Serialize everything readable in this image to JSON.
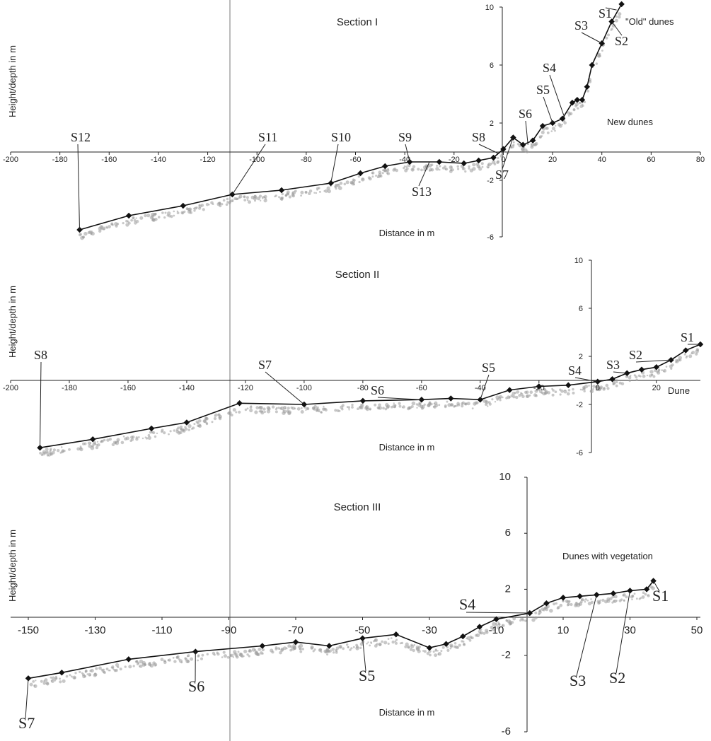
{
  "chart_data": [
    {
      "type": "line",
      "title": "Section I",
      "xlabel": "Distance in m",
      "ylabel": "Height/depth in m",
      "xlim": [
        -200,
        80
      ],
      "ylim": [
        -6,
        10
      ],
      "x_ticks": [
        "-200",
        "-180",
        "-160",
        "-140",
        "-120",
        "-100",
        "-80",
        "-60",
        "-40",
        "-20",
        "0",
        "20",
        "40",
        "60",
        "80"
      ],
      "y_ticks": [
        "-6",
        "-2",
        "2",
        "6",
        "10"
      ],
      "annotations": [
        "\"Old\" dunes",
        "New dunes"
      ],
      "series": [
        {
          "x": [
            -172,
            -152,
            -130,
            -110,
            -90,
            -70,
            -58,
            -48,
            -38,
            -26,
            -16,
            -10,
            -4,
            0,
            4,
            8,
            12,
            16,
            20,
            24,
            28,
            30,
            32,
            34,
            36,
            40,
            44,
            48
          ],
          "y": [
            -5.5,
            -4.5,
            -3.8,
            -3.0,
            -2.7,
            -2.2,
            -1.5,
            -1.0,
            -0.7,
            -0.7,
            -0.8,
            -0.6,
            -0.4,
            0.2,
            1.0,
            0.5,
            0.8,
            1.8,
            2.0,
            2.3,
            3.4,
            3.6,
            3.6,
            4.5,
            6.0,
            7.5,
            9.0,
            10.2
          ]
        }
      ],
      "stations": [
        {
          "label": "S12",
          "x": -172,
          "y": -5.5
        },
        {
          "label": "S11",
          "x": -110,
          "y": -3.0
        },
        {
          "label": "S10",
          "x": -70,
          "y": -2.2
        },
        {
          "label": "S9",
          "x": -38,
          "y": -0.7
        },
        {
          "label": "S8",
          "x": -2,
          "y": -0.1
        },
        {
          "label": "S7",
          "x": 4,
          "y": 1.0
        },
        {
          "label": "S6",
          "x": 10,
          "y": 0.5
        },
        {
          "label": "S5",
          "x": 20,
          "y": 2.0
        },
        {
          "label": "S4",
          "x": 25,
          "y": 2.3
        },
        {
          "label": "S3",
          "x": 40,
          "y": 7.5
        },
        {
          "label": "S2",
          "x": 44,
          "y": 9.0
        },
        {
          "label": "S1",
          "x": 46,
          "y": 9.8
        },
        {
          "label": "S13",
          "x": -30,
          "y": -0.7
        }
      ]
    },
    {
      "type": "line",
      "title": "Section II",
      "xlabel": "Distance in m",
      "ylabel": "Height/depth in m",
      "xlim": [
        -200,
        35
      ],
      "ylim": [
        -6,
        10
      ],
      "x_ticks": [
        "-200",
        "-180",
        "-160",
        "-140",
        "-120",
        "-100",
        "-80",
        "-60",
        "-40",
        "-20",
        "0",
        "20"
      ],
      "y_ticks": [
        "-6",
        "-2",
        "2",
        "6",
        "10"
      ],
      "annotations": [
        "Dune"
      ],
      "series": [
        {
          "x": [
            -190,
            -172,
            -152,
            -140,
            -122,
            -100,
            -80,
            -60,
            -50,
            -40,
            -30,
            -20,
            -10,
            0,
            5,
            10,
            15,
            20,
            25,
            30,
            35
          ],
          "y": [
            -5.6,
            -4.9,
            -4.0,
            -3.5,
            -1.9,
            -2.0,
            -1.7,
            -1.6,
            -1.5,
            -1.6,
            -0.8,
            -0.5,
            -0.4,
            -0.1,
            0.1,
            0.6,
            0.9,
            1.1,
            1.7,
            2.5,
            3.0
          ]
        }
      ],
      "stations": [
        {
          "label": "S8",
          "x": -190,
          "y": -5.6
        },
        {
          "label": "S7",
          "x": -100,
          "y": -2.0
        },
        {
          "label": "S6",
          "x": -60,
          "y": -1.6
        },
        {
          "label": "S5",
          "x": -40,
          "y": -1.6
        },
        {
          "label": "S4",
          "x": 0,
          "y": -0.1
        },
        {
          "label": "S3",
          "x": 10,
          "y": 0.6
        },
        {
          "label": "S2",
          "x": 25,
          "y": 1.7
        },
        {
          "label": "S1",
          "x": 35,
          "y": 3.0
        }
      ]
    },
    {
      "type": "line",
      "title": "Section III",
      "xlabel": "Distance in m",
      "ylabel": "Height/depth in m",
      "xlim": [
        -150,
        50
      ],
      "ylim": [
        -6,
        10
      ],
      "x_ticks": [
        "-150",
        "-130",
        "-110",
        "-90",
        "-70",
        "-50",
        "-30",
        "-10",
        "10",
        "30",
        "50"
      ],
      "y_ticks": [
        "-6",
        "-2",
        "2",
        "6",
        "10"
      ],
      "annotations": [
        "Dunes with vegetation"
      ],
      "series": [
        {
          "x": [
            -150,
            -140,
            -120,
            -100,
            -80,
            -70,
            -60,
            -50,
            -40,
            -30,
            -25,
            -20,
            -15,
            -10,
            0,
            5,
            10,
            15,
            20,
            25,
            30,
            35,
            37
          ],
          "y": [
            -3.2,
            -2.9,
            -2.2,
            -1.8,
            -1.5,
            -1.3,
            -1.5,
            -1.1,
            -0.9,
            -1.6,
            -1.4,
            -1.0,
            -0.5,
            -0.1,
            0.3,
            1.0,
            1.4,
            1.5,
            1.6,
            1.7,
            1.9,
            2.0,
            2.6
          ]
        }
      ],
      "stations": [
        {
          "label": "S7",
          "x": -150,
          "y": -3.2
        },
        {
          "label": "S6",
          "x": -100,
          "y": -1.8
        },
        {
          "label": "S5",
          "x": -50,
          "y": -1.1
        },
        {
          "label": "S4",
          "x": 0,
          "y": 0.3
        },
        {
          "label": "S3",
          "x": 20,
          "y": 1.6
        },
        {
          "label": "S2",
          "x": 30,
          "y": 1.9
        },
        {
          "label": "S1",
          "x": 37,
          "y": 2.6
        }
      ]
    }
  ]
}
